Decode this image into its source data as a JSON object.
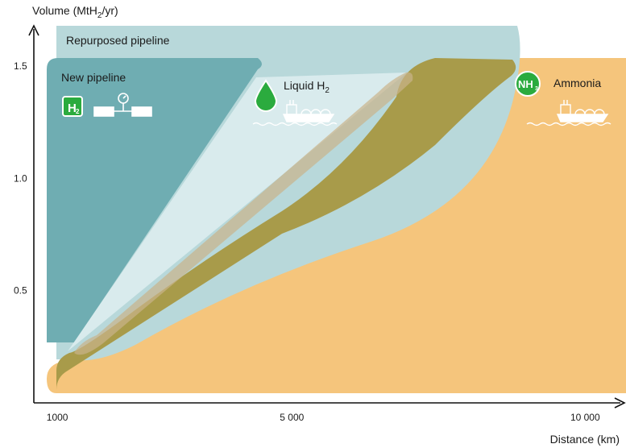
{
  "chart_data": {
    "type": "area",
    "title": "",
    "ylabel": {
      "main": "Volume (MtH",
      "sub": "2",
      "tail": "/yr)"
    },
    "xlabel": "Distance (km)",
    "x_ticks": [
      {
        "value": 1000,
        "label": "1000"
      },
      {
        "value": 5000,
        "label": "5 000"
      },
      {
        "value": 10000,
        "label": "10 000"
      }
    ],
    "y_ticks": [
      {
        "value": 0.5,
        "label": "0.5"
      },
      {
        "value": 1.0,
        "label": "1.0"
      },
      {
        "value": 1.5,
        "label": "1.5"
      }
    ],
    "xlim": [
      600,
      10600
    ],
    "ylim": [
      0,
      1.68
    ],
    "series": [
      {
        "name": "Ammonia",
        "color": "#f5c57c",
        "region": [
          [
            900,
            0.1
          ],
          [
            10600,
            0.1
          ],
          [
            10600,
            1.49
          ],
          [
            4400,
            1.49
          ],
          [
            900,
            0.22
          ]
        ]
      },
      {
        "name": "Repurposed pipeline",
        "color": "#b8d8da",
        "region": [
          [
            900,
            0.2
          ],
          [
            900,
            1.6
          ],
          [
            8300,
            1.6
          ],
          [
            6500,
            0.95
          ],
          [
            1600,
            0.2
          ]
        ]
      },
      {
        "name": "Liquid H2",
        "color": "#a89b4a",
        "region": [
          [
            1000,
            0.1
          ],
          [
            2400,
            0.1
          ],
          [
            6700,
            0.68
          ],
          [
            8300,
            1.35
          ],
          [
            8200,
            1.48
          ],
          [
            5000,
            1.48
          ],
          [
            3200,
            0.95
          ],
          [
            1000,
            0.28
          ]
        ]
      },
      {
        "name": "New pipeline",
        "color": "#6fadb2",
        "region": [
          [
            800,
            0.25
          ],
          [
            800,
            1.49
          ],
          [
            3700,
            1.49
          ],
          [
            1000,
            0.25
          ]
        ]
      }
    ],
    "labels": {
      "new_pipeline": "New pipeline",
      "repurposed_pipeline": "Repurposed pipeline",
      "liquid_h2": {
        "main": "Liquid H",
        "sub": "2"
      },
      "ammonia": "Ammonia"
    },
    "icons": {
      "h2_badge": {
        "main": "H",
        "sub": "2"
      },
      "nh3_badge": {
        "main": "NH",
        "sub": "3"
      }
    },
    "colors": {
      "ammonia": "#f5c57c",
      "repurposed_pipeline": "#b8d8da",
      "new_pipeline": "#6fadb2",
      "liquid_h2": "#a89b4a",
      "liquid_h2_light": "#deeef0",
      "icon_green": "#2bab3e"
    },
    "grid": false,
    "legend": "none"
  }
}
